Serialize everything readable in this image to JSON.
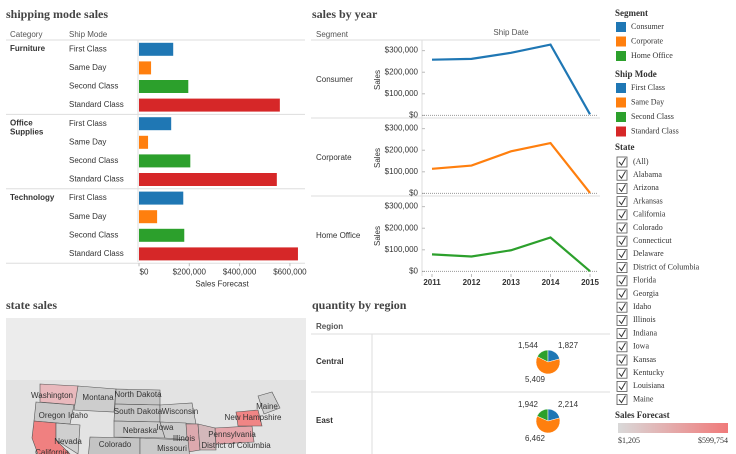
{
  "chart_data": [
    {
      "type": "bar",
      "title": "shipping mode sales",
      "header": "Category",
      "subheader": "Ship Mode",
      "categories": [
        "Furniture",
        "Office Supplies",
        "Technology"
      ],
      "series": [
        {
          "name": "First Class",
          "color": "#1f77b4",
          "values": [
            136000,
            128000,
            176000
          ]
        },
        {
          "name": "Same Day",
          "color": "#ff7f0e",
          "values": [
            48000,
            36000,
            72000
          ]
        },
        {
          "name": "Second Class",
          "color": "#2ca02c",
          "values": [
            196000,
            204000,
            180000
          ]
        },
        {
          "name": "Standard Class",
          "color": "#d62728",
          "values": [
            560000,
            548000,
            632000
          ]
        }
      ],
      "x_label": "Sales Forecast",
      "xlim": [
        0,
        660000
      ],
      "xticks": [
        {
          "value": 0,
          "label": "$0"
        },
        {
          "value": 200000,
          "label": "$200,000"
        },
        {
          "value": 400000,
          "label": "$400,000"
        },
        {
          "value": 600000,
          "label": "$600,000"
        }
      ]
    },
    {
      "type": "line",
      "title": "sales by year",
      "x_label": "Ship Date",
      "row_header": "Segment",
      "y_label": "Sales",
      "x": [
        2011,
        2012,
        2013,
        2014,
        2015
      ],
      "series": [
        {
          "name": "Consumer",
          "color": "#1f77b4",
          "values": [
            258000,
            262000,
            290000,
            328000,
            5000
          ]
        },
        {
          "name": "Corporate",
          "color": "#ff7f0e",
          "values": [
            114000,
            129000,
            195000,
            233000,
            2000
          ]
        },
        {
          "name": "Home Office",
          "color": "#2ca02c",
          "values": [
            79000,
            69000,
            98000,
            157000,
            1000
          ]
        }
      ],
      "ylim": [
        -12000,
        340000
      ],
      "yticks": [
        {
          "value": 0,
          "label": "$0"
        },
        {
          "value": 100000,
          "label": "$100,000"
        },
        {
          "value": 200000,
          "label": "$200,000"
        },
        {
          "value": 300000,
          "label": "$300,000"
        }
      ]
    },
    {
      "type": "pie",
      "title": "quantity by region",
      "row_header": "Region",
      "categories": [
        "Central",
        "East"
      ],
      "colors": [
        "#2ca02c",
        "#1f77b4",
        "#ff7f0e"
      ],
      "pies": [
        {
          "values": [
            1544,
            1827,
            5409
          ],
          "value_labels": [
            "1,544",
            "1,827",
            "5,409"
          ]
        },
        {
          "values": [
            1942,
            2214,
            6462
          ],
          "value_labels": [
            "1,942",
            "2,214",
            "6,462"
          ]
        }
      ]
    }
  ],
  "map": {
    "title": "state sales",
    "labels": [
      "Washington",
      "Idaho",
      "Montana",
      "North Dakota",
      "Oregon",
      "South Dakota",
      "Wisconsin",
      "Nebraska",
      "Iowa",
      "Nevada",
      "Colorado",
      "Illinois",
      "Missouri",
      "Pennsylvania",
      "District of Columbia",
      "Maine",
      "New Hampshire",
      "California"
    ]
  },
  "filter": {
    "title": "State",
    "items": [
      "(All)",
      "Alabama",
      "Arizona",
      "Arkansas",
      "California",
      "Colorado",
      "Connecticut",
      "Delaware",
      "District of Columbia",
      "Florida",
      "Georgia",
      "Idaho",
      "Illinois",
      "Indiana",
      "Iowa",
      "Kansas",
      "Kentucky",
      "Louisiana",
      "Maine"
    ]
  },
  "color_legend": {
    "min_label": "$1,205",
    "max_label": "$599,754"
  }
}
